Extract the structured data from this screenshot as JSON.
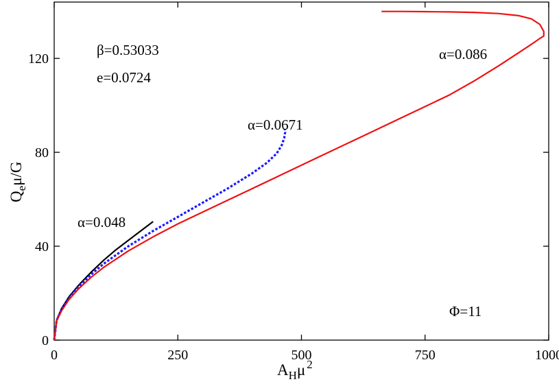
{
  "chart_data": {
    "type": "line",
    "title": "",
    "xlabel": {
      "base": "A",
      "sub": "H",
      "after": "μ",
      "sup": "2"
    },
    "ylabel": {
      "base": "Q",
      "sub": "e",
      "after": "μ/G"
    },
    "xlim": [
      0,
      1000
    ],
    "ylim": [
      0,
      144
    ],
    "xticks": [
      0,
      250,
      500,
      750,
      1000
    ],
    "yticks": [
      0,
      40,
      80,
      120
    ],
    "xtick_labels": [
      "0",
      "250",
      "500",
      "750",
      "1000"
    ],
    "ytick_labels": [
      "0",
      "40",
      "80",
      "120"
    ],
    "grid": false,
    "annotations": {
      "beta": "β=0.53033",
      "e": "e=0.0724",
      "phi": "Φ=11"
    },
    "series": [
      {
        "name": "α=0.048",
        "color": "#000000",
        "style": "solid",
        "x": [
          0,
          5,
          15,
          30,
          50,
          75,
          100,
          125,
          150,
          175,
          200
        ],
        "y": [
          0,
          8.5,
          13.5,
          18.5,
          23.5,
          29,
          34,
          38.5,
          42.5,
          46.5,
          50.5
        ]
      },
      {
        "name": "α=0.0671",
        "color": "#1a1aff",
        "style": "dotted",
        "x": [
          0,
          5,
          15,
          30,
          50,
          75,
          100,
          150,
          200,
          250,
          300,
          350,
          400,
          430,
          450,
          460,
          465,
          467,
          466
        ],
        "y": [
          0,
          8.4,
          13,
          18,
          23,
          28,
          32.5,
          40,
          46.5,
          52.5,
          58.5,
          64.5,
          71,
          75.5,
          79.5,
          83,
          86,
          88.5,
          90
        ]
      },
      {
        "name": "α=0.086",
        "color": "#ee1111",
        "style": "solid",
        "x": [
          0,
          5,
          15,
          30,
          50,
          75,
          100,
          150,
          200,
          250,
          300,
          350,
          400,
          450,
          500,
          550,
          600,
          650,
          700,
          750,
          800,
          850,
          900,
          940,
          965,
          982,
          990,
          990,
          982,
          965,
          940,
          900,
          850,
          800,
          750,
          700,
          662
        ],
        "y": [
          0,
          8.2,
          12.5,
          17.3,
          22,
          26.8,
          31,
          38,
          44,
          49.5,
          54.5,
          59.5,
          64.5,
          69.5,
          74.5,
          79.5,
          84.5,
          89.5,
          94.5,
          99.5,
          104.5,
          110.5,
          117,
          122.5,
          126,
          128.5,
          129.5,
          131.5,
          134.5,
          136.8,
          138.2,
          139.1,
          139.6,
          139.8,
          139.9,
          140,
          140
        ]
      }
    ]
  }
}
